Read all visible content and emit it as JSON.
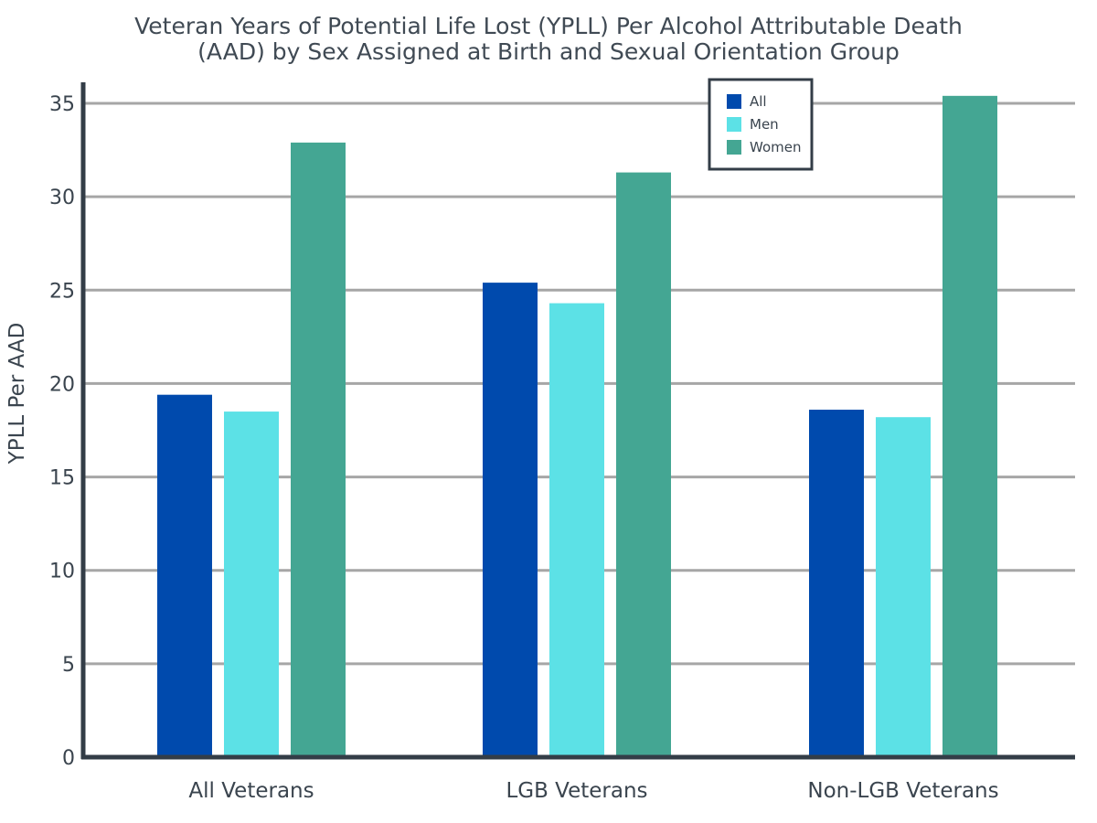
{
  "chart_data": {
    "type": "bar",
    "title": [
      "Veteran Years of Potential Life Lost (YPLL) Per Alcohol Attributable Death",
      "(AAD) by Sex Assigned at Birth and Sexual Orientation Group"
    ],
    "xlabel": "",
    "ylabel": "YPLL Per AAD",
    "ylim": [
      0,
      36
    ],
    "yticks": [
      0,
      5,
      10,
      15,
      20,
      25,
      30,
      35
    ],
    "categories": [
      "All Veterans",
      "LGB Veterans",
      "Non-LGB Veterans"
    ],
    "series": [
      {
        "name": "All",
        "color": "#004aad",
        "values": [
          19.4,
          25.4,
          18.6
        ]
      },
      {
        "name": "Men",
        "color": "#5ce1e6",
        "values": [
          18.5,
          24.3,
          18.2
        ]
      },
      {
        "name": "Women",
        "color": "#44a693",
        "values": [
          32.9,
          31.3,
          35.4
        ]
      }
    ],
    "grid": true,
    "legend_position": "top-right"
  }
}
